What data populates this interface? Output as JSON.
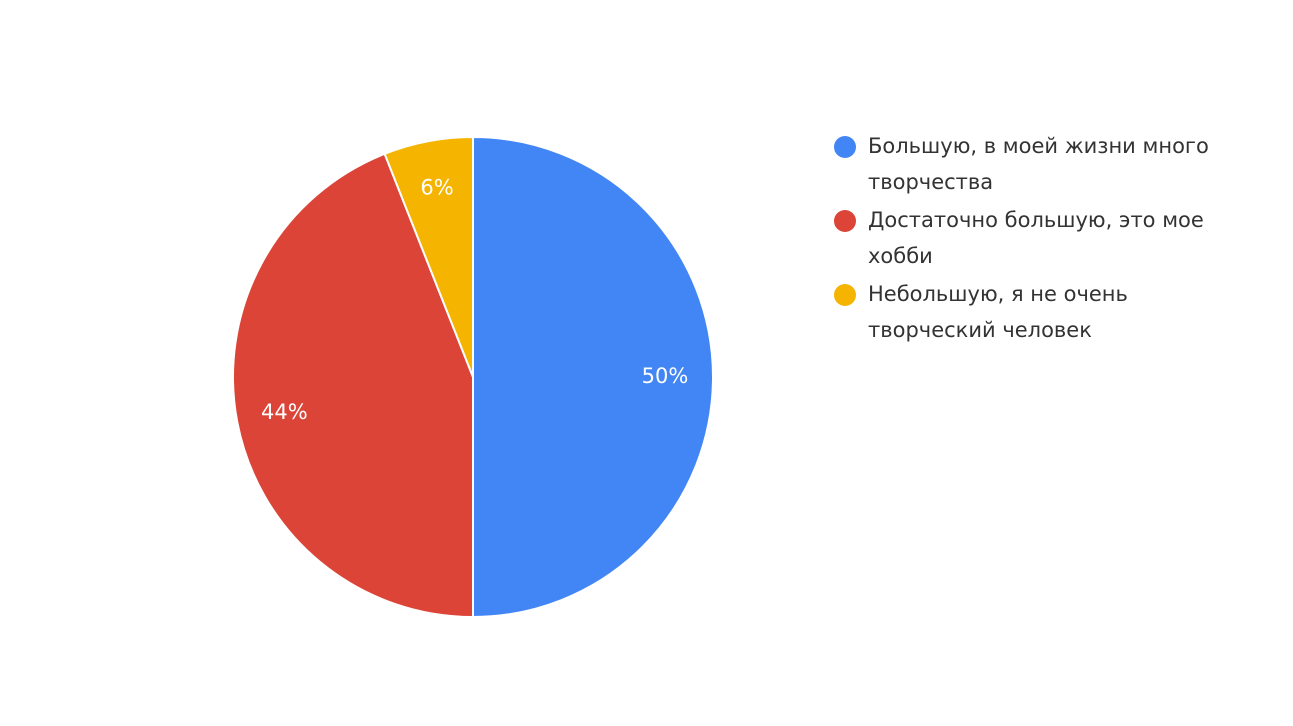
{
  "chart_data": {
    "type": "pie",
    "categories": [
      "Большую, в моей жизни много творчества",
      "Достаточно большую, это мое хобби",
      "Небольшую, я не очень творческий человек"
    ],
    "values": [
      50,
      44,
      6
    ],
    "value_labels": [
      "50%",
      "44%",
      "6%"
    ],
    "colors": [
      "#4285f4",
      "#db4437",
      "#f4b400"
    ],
    "legend": "right"
  }
}
